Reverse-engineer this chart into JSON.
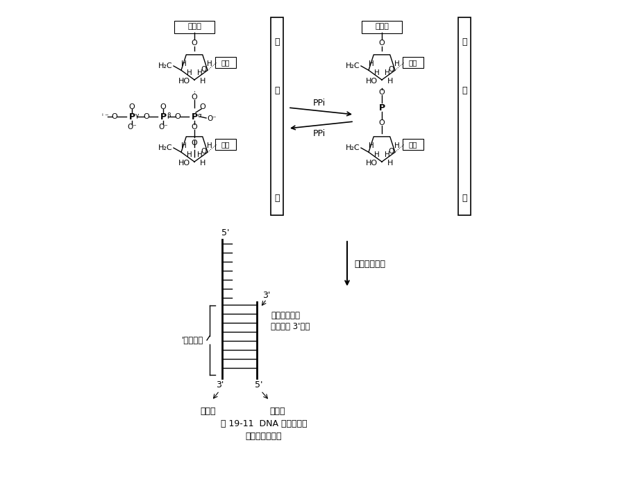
{
  "bg_color": "#ffffff",
  "title_caption": "图 19-11  DNA 酶促合成的",
  "title_caption2": "引物链和模板链",
  "arrow_label": "链的合成方向",
  "ppi_label1": "PPi",
  "ppi_label2": "PPi",
  "label_moban_top_left": "模",
  "label_ban_left": "板",
  "label_lian_left": "链",
  "label_moban_top_right": "模",
  "label_ban_right": "板",
  "label_lian_right": "链",
  "label_yinwulian_left": "引物链",
  "label_jiluan_left": "碱基",
  "label_jiluan_left2": "碱基",
  "label_jiluan_right": "碱基",
  "label_jiluan_right2": "碱基",
  "label_yinwulian_right": "引物链",
  "label_5prime_top": "5'",
  "label_3prime_mid": "3'",
  "label_3prime_bottom": "3'",
  "label_5prime_bottom": "5'",
  "label_peidui": "'配对碱基",
  "label_hejisuan": "核苷酸加入到",
  "label_yinwuchain3end": "引物链的 3'末端",
  "label_moban_bottom": "模板链",
  "label_yinwu_bottom": "引物链"
}
